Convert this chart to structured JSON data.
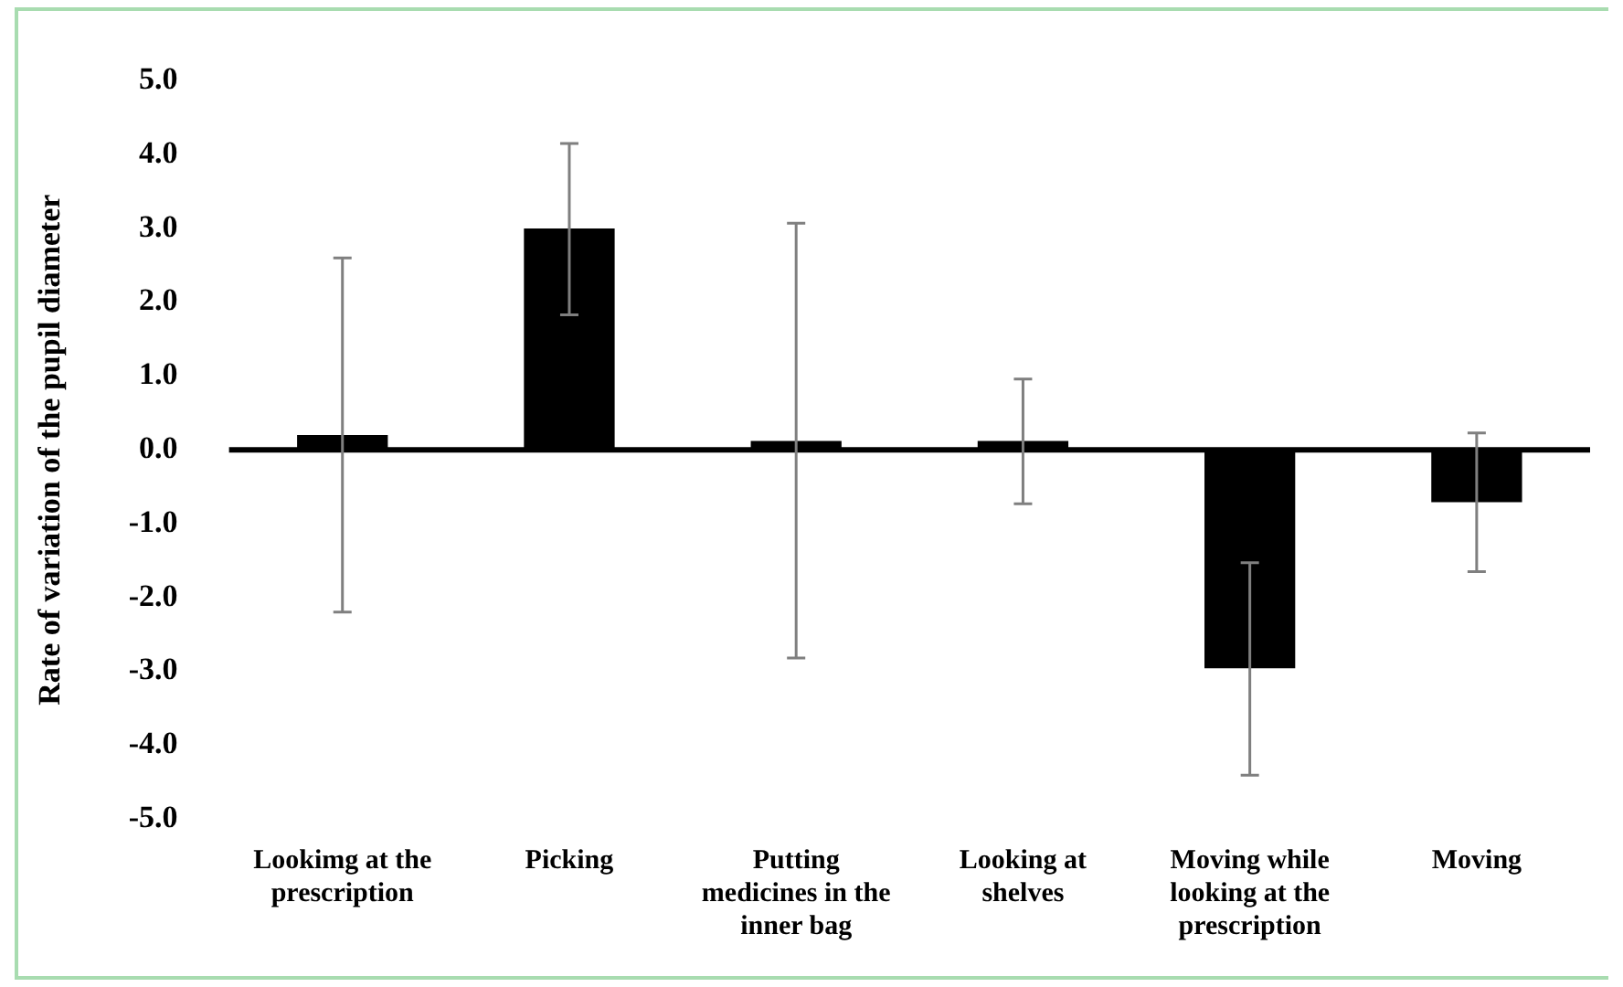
{
  "chart_data": {
    "type": "bar",
    "ylabel": "Rate of variation of the pupil diameter",
    "categories": [
      "Lookimg at the prescription",
      "Picking",
      "Putting medicines in the inner bag",
      "Looking at shelves",
      "Moving while looking at the prescription",
      "Moving"
    ],
    "values": [
      0.2,
      3.0,
      0.12,
      0.12,
      -2.96,
      -0.71
    ],
    "errors": [
      [
        -2.2,
        2.6
      ],
      [
        1.83,
        4.15
      ],
      [
        -2.82,
        3.07
      ],
      [
        -0.73,
        0.96
      ],
      [
        -4.41,
        -1.53
      ],
      [
        -1.65,
        0.23
      ]
    ],
    "color": "#000000",
    "ylim": [
      -5,
      5
    ],
    "yticks": [
      {
        "value": -5,
        "label": "-5.0"
      },
      {
        "value": -4,
        "label": "-4.0"
      },
      {
        "value": -3,
        "label": "-3.0"
      },
      {
        "value": -2,
        "label": "-2.0"
      },
      {
        "value": -1,
        "label": "-1.0"
      },
      {
        "value": 0,
        "label": "0.0"
      },
      {
        "value": 1,
        "label": "1.0"
      },
      {
        "value": 2,
        "label": "2.0"
      },
      {
        "value": 3,
        "label": "3.0"
      },
      {
        "value": 4,
        "label": "4.0"
      },
      {
        "value": 5,
        "label": "5.0"
      }
    ],
    "ref_lines": [
      {
        "axis": "y",
        "value": 0,
        "color": "#000000"
      }
    ],
    "grid": false,
    "legend": false
  }
}
